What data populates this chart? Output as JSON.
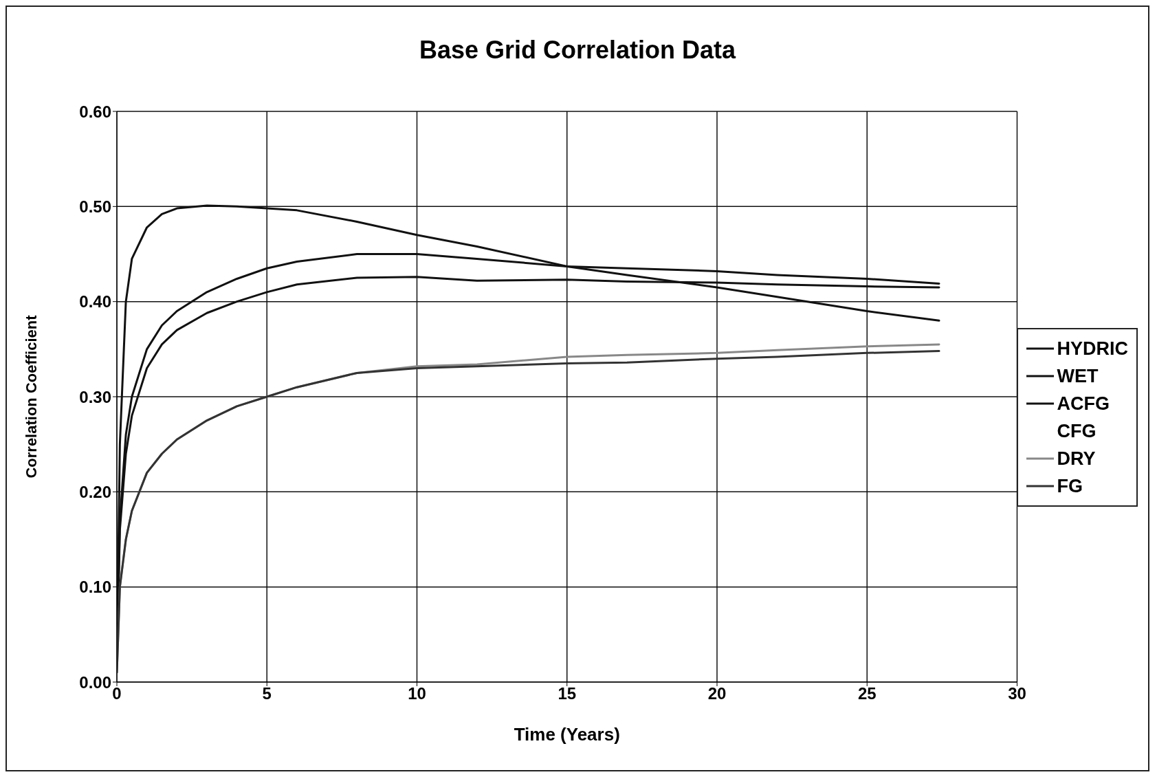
{
  "chart_data": {
    "type": "line",
    "title": "Base Grid Correlation Data",
    "xlabel": "Time (Years)",
    "ylabel": "Correlation Coefficient",
    "x": [
      0,
      0.1,
      0.3,
      0.5,
      1,
      1.5,
      2,
      3,
      4,
      5,
      6,
      8,
      10,
      12,
      15,
      17,
      20,
      22,
      25,
      27.4
    ],
    "series": [
      {
        "name": "HYDRIC",
        "color": "#111111",
        "values": [
          0.02,
          0.25,
          0.4,
          0.445,
          0.478,
          0.492,
          0.498,
          0.501,
          0.5,
          0.498,
          0.496,
          0.484,
          0.47,
          0.458,
          0.437,
          0.428,
          0.415,
          0.405,
          0.39,
          0.38
        ]
      },
      {
        "name": "WET",
        "color": "#111111",
        "values": [
          0.02,
          0.17,
          0.26,
          0.3,
          0.35,
          0.375,
          0.39,
          0.41,
          0.424,
          0.435,
          0.442,
          0.45,
          0.45,
          0.445,
          0.437,
          0.435,
          0.432,
          0.428,
          0.424,
          0.419
        ]
      },
      {
        "name": "ACFG",
        "color": "#111111",
        "values": [
          0.02,
          0.16,
          0.24,
          0.28,
          0.33,
          0.355,
          0.37,
          0.388,
          0.4,
          0.41,
          0.418,
          0.425,
          0.426,
          0.422,
          0.423,
          0.421,
          0.42,
          0.418,
          0.416,
          0.415
        ]
      },
      {
        "name": "CFG",
        "values": [
          null,
          null,
          null,
          null,
          null,
          null,
          null,
          null,
          null,
          null,
          null,
          null,
          null,
          null,
          null,
          null,
          null,
          null,
          null,
          null
        ]
      },
      {
        "name": "DRY",
        "color": "#888888",
        "values": [
          0.01,
          0.1,
          0.15,
          0.18,
          0.22,
          0.24,
          0.255,
          0.275,
          0.29,
          0.3,
          0.31,
          0.325,
          0.332,
          0.334,
          0.342,
          0.344,
          0.346,
          0.349,
          0.353,
          0.355
        ]
      },
      {
        "name": "FG",
        "color": "#333333",
        "values": [
          0.01,
          0.1,
          0.15,
          0.18,
          0.22,
          0.24,
          0.255,
          0.275,
          0.29,
          0.3,
          0.31,
          0.325,
          0.33,
          0.332,
          0.335,
          0.336,
          0.34,
          0.342,
          0.346,
          0.348
        ]
      }
    ],
    "xlim": [
      0,
      30
    ],
    "xticks": [
      0,
      5,
      10,
      15,
      20,
      25,
      30
    ],
    "ylim": [
      0,
      0.6
    ],
    "yticks": [
      {
        "value": 0,
        "label": "0.00"
      },
      {
        "value": 0.1,
        "label": "0.10"
      },
      {
        "value": 0.2,
        "label": "0.20"
      },
      {
        "value": 0.3,
        "label": "0.30"
      },
      {
        "value": 0.4,
        "label": "0.40"
      },
      {
        "value": 0.5,
        "label": "0.50"
      },
      {
        "value": 0.6,
        "label": "0.60"
      }
    ],
    "grid": true,
    "legend": "right",
    "line_style": "solid",
    "marker": "none"
  }
}
